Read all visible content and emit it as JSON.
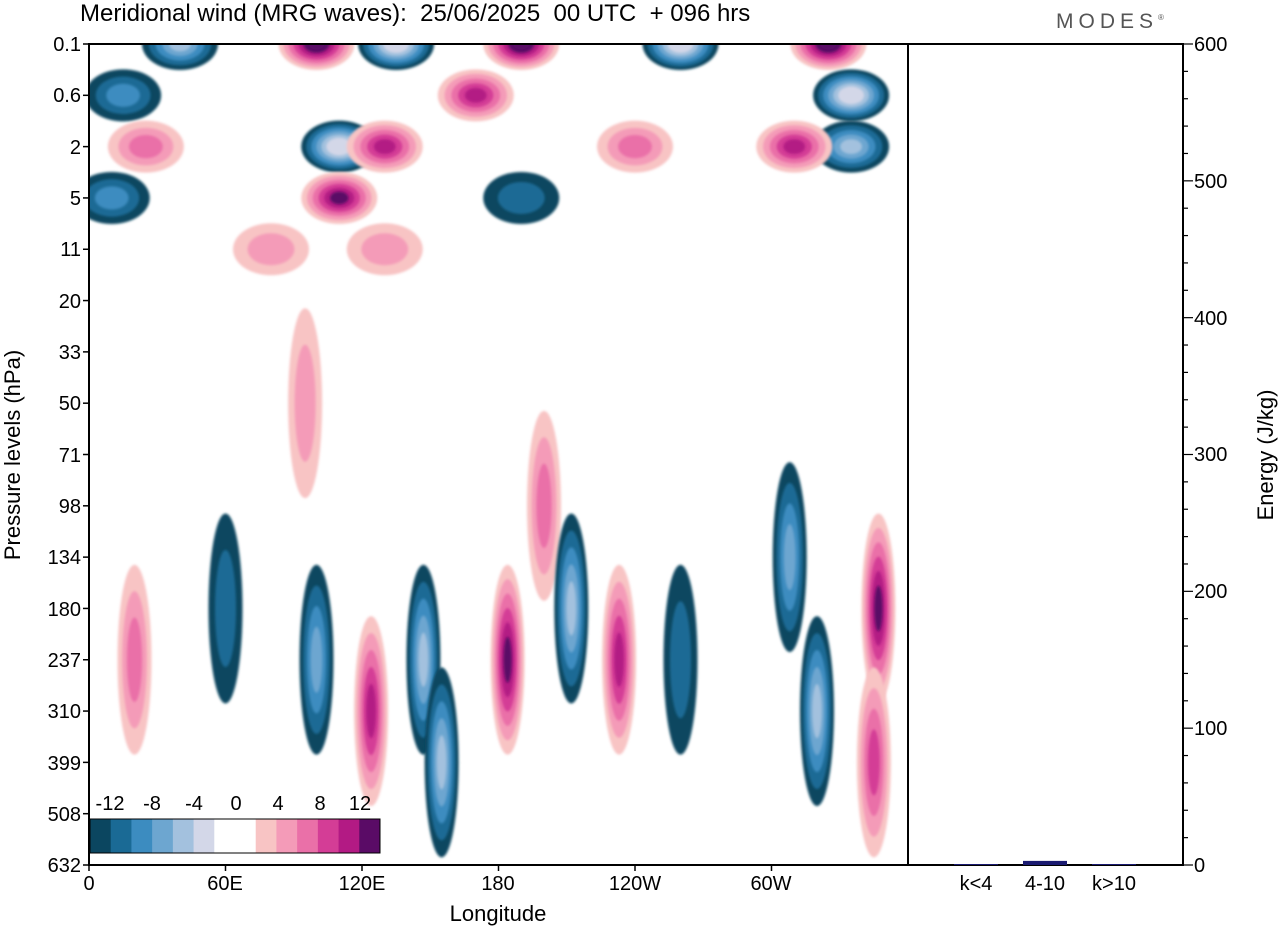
{
  "header": {
    "title": "Meridional wind (MRG waves):  25/06/2025  00 UTC  + 096 hrs",
    "logo": "MODES"
  },
  "colors": {
    "neg": [
      "#0b4660",
      "#1a6a95",
      "#3c8cc0",
      "#6da6d0",
      "#a3c1de",
      "#d3d7e8"
    ],
    "pos": [
      "#f8c4c4",
      "#f49bb8",
      "#ea70a8",
      "#d43d96",
      "#b31a84",
      "#5a0b66"
    ],
    "bar": "#1a1a70"
  },
  "chart_data": [
    {
      "type": "heatmap",
      "title": "Meridional wind (MRG waves):  25/06/2025  00 UTC  + 096 hrs",
      "xlabel": "Longitude",
      "ylabel": "Pressure levels (hPa)",
      "x_ticks": [
        "0",
        "60E",
        "120E",
        "180",
        "120W",
        "60W"
      ],
      "y_ticks": [
        "0.1",
        "0.6",
        "2",
        "5",
        "11",
        "20",
        "33",
        "50",
        "71",
        "98",
        "134",
        "180",
        "237",
        "310",
        "399",
        "508",
        "632"
      ],
      "colorbar": {
        "labels": [
          "-12",
          "-8",
          "-4",
          "0",
          "4",
          "8",
          "12"
        ],
        "levels": [
          -14,
          -12,
          -10,
          -8,
          -6,
          -4,
          -2,
          2,
          4,
          6,
          8,
          10,
          12,
          14
        ]
      },
      "features": [
        {
          "lon": 40,
          "level": "0.1",
          "value": -10
        },
        {
          "lon": 15,
          "level": "0.6",
          "value": -6
        },
        {
          "lon": 100,
          "level": "0.1",
          "value": 14
        },
        {
          "lon": 135,
          "level": "0.1",
          "value": -14
        },
        {
          "lon": 110,
          "level": "2",
          "value": -14
        },
        {
          "lon": 130,
          "level": "2",
          "value": 10
        },
        {
          "lon": 110,
          "level": "5",
          "value": 12
        },
        {
          "lon": 25,
          "level": "2",
          "value": 6
        },
        {
          "lon": 10,
          "level": "5",
          "value": -6
        },
        {
          "lon": 190,
          "level": "0.1",
          "value": 14
        },
        {
          "lon": 170,
          "level": "0.6",
          "value": 10
        },
        {
          "lon": 260,
          "level": "0.1",
          "value": -14
        },
        {
          "lon": 325,
          "level": "0.1",
          "value": 14
        },
        {
          "lon": 335,
          "level": "0.6",
          "value": -14
        },
        {
          "lon": 335,
          "level": "2",
          "value": -10
        },
        {
          "lon": 310,
          "level": "2",
          "value": 10
        },
        {
          "lon": 190,
          "level": "5",
          "value": -4
        },
        {
          "lon": 240,
          "level": "2",
          "value": 6
        },
        {
          "lon": 80,
          "level": "11",
          "value": 4
        },
        {
          "lon": 130,
          "level": "11",
          "value": 4
        },
        {
          "lon": 95,
          "level": "50",
          "value": 4
        },
        {
          "lon": 200,
          "level": "98",
          "value": 6
        },
        {
          "lon": 20,
          "level": "237",
          "value": 6
        },
        {
          "lon": 60,
          "level": "180",
          "value": -4
        },
        {
          "lon": 100,
          "level": "237",
          "value": -8
        },
        {
          "lon": 124,
          "level": "310",
          "value": 10
        },
        {
          "lon": 147,
          "level": "237",
          "value": -10
        },
        {
          "lon": 155,
          "level": "399",
          "value": -10
        },
        {
          "lon": 184,
          "level": "237",
          "value": 12
        },
        {
          "lon": 212,
          "level": "180",
          "value": -10
        },
        {
          "lon": 233,
          "level": "237",
          "value": 10
        },
        {
          "lon": 260,
          "level": "237",
          "value": -4
        },
        {
          "lon": 308,
          "level": "134",
          "value": -8
        },
        {
          "lon": 320,
          "level": "310",
          "value": -10
        },
        {
          "lon": 347,
          "level": "180",
          "value": 12
        },
        {
          "lon": 345,
          "level": "399",
          "value": 8
        }
      ]
    },
    {
      "type": "bar",
      "ylabel": "Energy (J/kg)",
      "ylim": [
        0,
        600
      ],
      "y_ticks": [
        "0",
        "100",
        "200",
        "300",
        "400",
        "500",
        "600"
      ],
      "categories": [
        "k<4",
        "4-10",
        "k>10"
      ],
      "values": [
        0.5,
        3,
        0
      ]
    }
  ]
}
